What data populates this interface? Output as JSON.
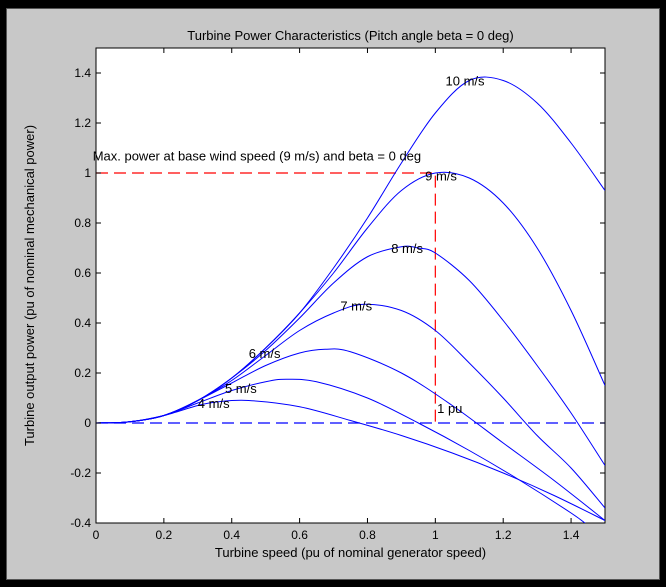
{
  "chart_data": {
    "type": "line",
    "title": "Turbine Power Characteristics (Pitch angle beta = 0 deg)",
    "xlabel": "Turbine speed (pu of nominal generator speed)",
    "ylabel": "Turbine output power (pu of nominal mechanical power)",
    "xlim": [
      0,
      1.5
    ],
    "ylim": [
      -0.4,
      1.5
    ],
    "xticks": [
      0,
      0.2,
      0.4,
      0.6,
      0.8,
      1,
      1.2,
      1.4
    ],
    "xtick_labels": [
      "0",
      "0.2",
      "0.4",
      "0.6",
      "0.8",
      "1",
      "1.2",
      "1.4"
    ],
    "yticks": [
      -0.4,
      -0.2,
      0,
      0.2,
      0.4,
      0.6,
      0.8,
      1,
      1.2,
      1.4
    ],
    "ytick_labels": [
      "-0.4",
      "-0.2",
      "0",
      "0.2",
      "0.4",
      "0.6",
      "0.8",
      "1",
      "1.2",
      "1.4"
    ],
    "grid": false,
    "line_color": "#0000ff",
    "marker_color": "#ff0000",
    "series": [
      {
        "label": "4 m/s",
        "x": [
          0,
          0.1,
          0.2,
          0.3,
          0.36,
          0.45,
          0.6,
          0.75,
          0.9,
          1.05,
          1.2,
          1.35,
          1.5
        ],
        "y": [
          0,
          0.005,
          0.03,
          0.07,
          0.085,
          0.09,
          0.065,
          0.01,
          -0.05,
          -0.12,
          -0.2,
          -0.29,
          -0.39
        ],
        "label_pos": [
          0.3,
          0.08
        ]
      },
      {
        "label": "5 m/s",
        "x": [
          0,
          0.1,
          0.2,
          0.3,
          0.4,
          0.5,
          0.56,
          0.65,
          0.8,
          0.95,
          1.1,
          1.25,
          1.4,
          1.45
        ],
        "y": [
          0,
          0.005,
          0.03,
          0.08,
          0.13,
          0.165,
          0.175,
          0.165,
          0.1,
          0.0,
          -0.11,
          -0.23,
          -0.36,
          -0.41
        ],
        "label_pos": [
          0.38,
          0.14
        ]
      },
      {
        "label": "6 m/s",
        "x": [
          0,
          0.1,
          0.2,
          0.3,
          0.4,
          0.5,
          0.6,
          0.675,
          0.75,
          0.9,
          1.05,
          1.2,
          1.35,
          1.5
        ],
        "y": [
          0,
          0.005,
          0.03,
          0.09,
          0.16,
          0.23,
          0.28,
          0.295,
          0.285,
          0.2,
          0.07,
          -0.08,
          -0.23,
          -0.39
        ],
        "label_pos": [
          0.45,
          0.28
        ]
      },
      {
        "label": "7 m/s",
        "x": [
          0,
          0.1,
          0.2,
          0.3,
          0.4,
          0.5,
          0.6,
          0.7,
          0.79,
          0.9,
          1.0,
          1.1,
          1.2,
          1.3,
          1.4,
          1.5
        ],
        "y": [
          0,
          0.005,
          0.03,
          0.09,
          0.17,
          0.27,
          0.37,
          0.44,
          0.475,
          0.45,
          0.37,
          0.24,
          0.1,
          -0.05,
          -0.18,
          -0.34
        ],
        "label_pos": [
          0.72,
          0.47
        ]
      },
      {
        "label": "8 m/s",
        "x": [
          0,
          0.1,
          0.2,
          0.3,
          0.4,
          0.5,
          0.6,
          0.7,
          0.8,
          0.9,
          0.95,
          1.0,
          1.1,
          1.2,
          1.3,
          1.4,
          1.5
        ],
        "y": [
          0,
          0.005,
          0.03,
          0.09,
          0.18,
          0.29,
          0.42,
          0.56,
          0.665,
          0.705,
          0.7,
          0.68,
          0.57,
          0.41,
          0.23,
          0.04,
          -0.17
        ],
        "label_pos": [
          0.87,
          0.7
        ]
      },
      {
        "label": "9 m/s",
        "x": [
          0,
          0.1,
          0.2,
          0.3,
          0.4,
          0.5,
          0.6,
          0.7,
          0.8,
          0.9,
          1.0,
          1.1,
          1.2,
          1.3,
          1.4,
          1.5
        ],
        "y": [
          0,
          0.005,
          0.03,
          0.09,
          0.18,
          0.3,
          0.44,
          0.6,
          0.78,
          0.93,
          1.0,
          0.98,
          0.88,
          0.7,
          0.45,
          0.15
        ],
        "label_pos": [
          0.97,
          0.99
        ]
      },
      {
        "label": "10 m/s",
        "x": [
          0,
          0.1,
          0.2,
          0.3,
          0.4,
          0.5,
          0.6,
          0.7,
          0.8,
          0.9,
          1.0,
          1.1,
          1.2,
          1.3,
          1.4,
          1.5
        ],
        "y": [
          0,
          0.005,
          0.03,
          0.09,
          0.18,
          0.3,
          0.44,
          0.62,
          0.82,
          1.04,
          1.24,
          1.37,
          1.37,
          1.28,
          1.12,
          0.93
        ],
        "label_pos": [
          1.03,
          1.37
        ]
      }
    ],
    "reference_lines": [
      {
        "kind": "dashed",
        "color": "#ff0000",
        "x": [
          0,
          1,
          1
        ],
        "y": [
          1,
          1,
          0
        ]
      },
      {
        "kind": "dashed",
        "color": "#0000ff",
        "x": [
          0,
          1.5
        ],
        "y": [
          0,
          0
        ]
      }
    ],
    "annotations": [
      {
        "text": "Max. power at base wind speed (9 m/s) and beta = 0 deg",
        "x": 0.005,
        "y": 1.05
      },
      {
        "text": "1 pu",
        "x": 1.02,
        "y": 0.04
      }
    ]
  }
}
